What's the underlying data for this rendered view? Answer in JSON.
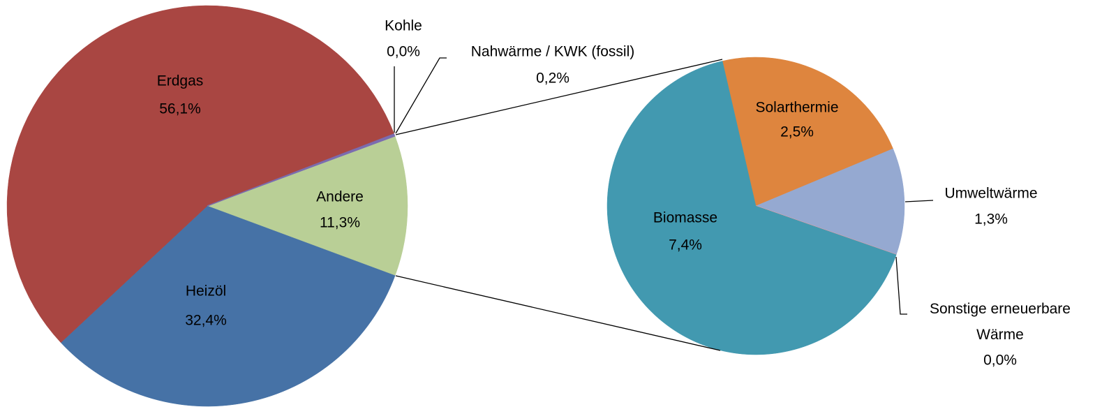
{
  "chart_data": {
    "type": "pie_of_pie",
    "categories": [
      "Andere",
      "Heizöl",
      "Erdgas",
      "Kohle",
      "Nahwärme / KWK (fossil)"
    ],
    "values": [
      11.3,
      32.4,
      56.1,
      0.0,
      0.2
    ],
    "value_labels": [
      "11,3%",
      "32,4%",
      "56,1%",
      "0,0%",
      "0,2%"
    ],
    "colors": [
      "#b9cf96",
      "#4672a6",
      "#a94642",
      "#7e6aa0",
      "#7b6cb0"
    ],
    "secondary": {
      "categories": [
        "Solarthermie",
        "Umweltwärme",
        "Sonstige erneuerbare Wärme",
        "Biomasse"
      ],
      "values": [
        2.5,
        1.3,
        0.0,
        7.4
      ],
      "value_labels": [
        "2,5%",
        "1,3%",
        "0,0%",
        "7,4%"
      ],
      "colors": [
        "#de853e",
        "#95a9d1",
        "#f0a0a0",
        "#4299b0"
      ]
    }
  }
}
